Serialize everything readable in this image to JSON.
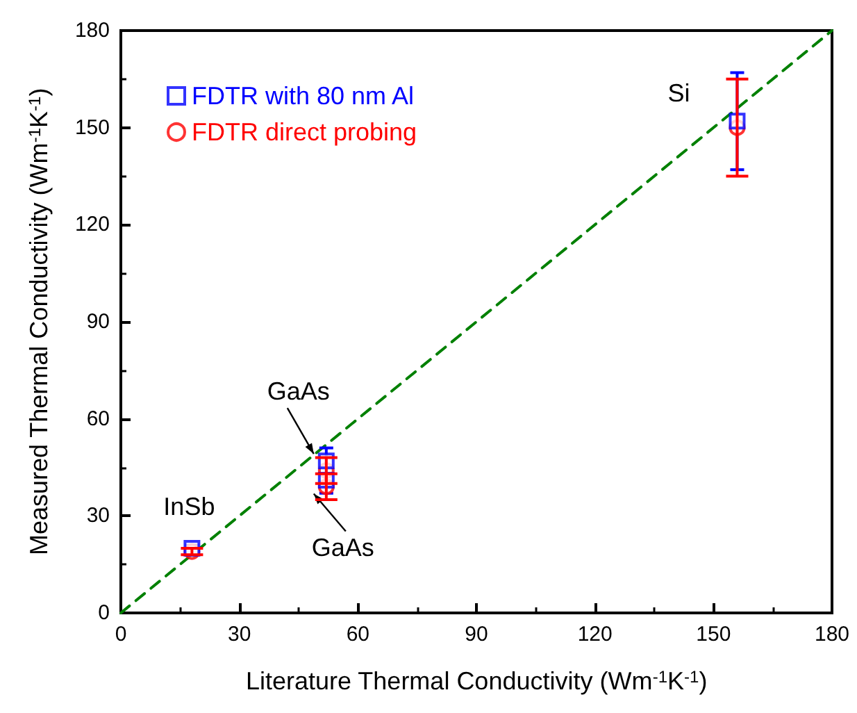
{
  "chart_data": {
    "type": "scatter",
    "xlabel": "Literature Thermal Conductivity (Wm$^{-1}$K$^{-1}$)",
    "ylabel": "Measured Thermal Conductivity (Wm$^{-1}$K$^{-1}$)",
    "xlim": [
      0,
      180
    ],
    "xticks": [
      0,
      30,
      60,
      90,
      120,
      150,
      180
    ],
    "ylim": [
      0,
      180
    ],
    "yticks": [
      0,
      30,
      60,
      90,
      120,
      150,
      180
    ],
    "grid": false,
    "legend": "top left",
    "series": [
      {
        "name": "FDTR with 80 nm Al",
        "color": "#0000ff",
        "marker": "square",
        "x": [
          18,
          52,
          52,
          156
        ],
        "values": [
          20,
          47,
          41,
          152
        ],
        "errors": [
          1,
          4,
          4,
          15
        ]
      },
      {
        "name": "FDTR direct probing",
        "color": "#ff0000",
        "marker": "circle",
        "x": [
          18,
          52,
          52,
          156
        ],
        "values": [
          19,
          44,
          39,
          150
        ],
        "errors": [
          1,
          4,
          4,
          15
        ]
      },
      {
        "type": "line",
        "color": "#008000",
        "line_style": "dashed",
        "marker": "none",
        "x": [
          0,
          180
        ],
        "values": [
          0,
          180
        ]
      }
    ],
    "annotations": [
      {
        "text": "InSb",
        "x": 18,
        "y": 20
      },
      {
        "text": "GaAs",
        "x": 52,
        "y": 47
      },
      {
        "text": "GaAs",
        "x": 52,
        "y": 39
      },
      {
        "text": "Si",
        "x": 156,
        "y": 152
      }
    ]
  }
}
